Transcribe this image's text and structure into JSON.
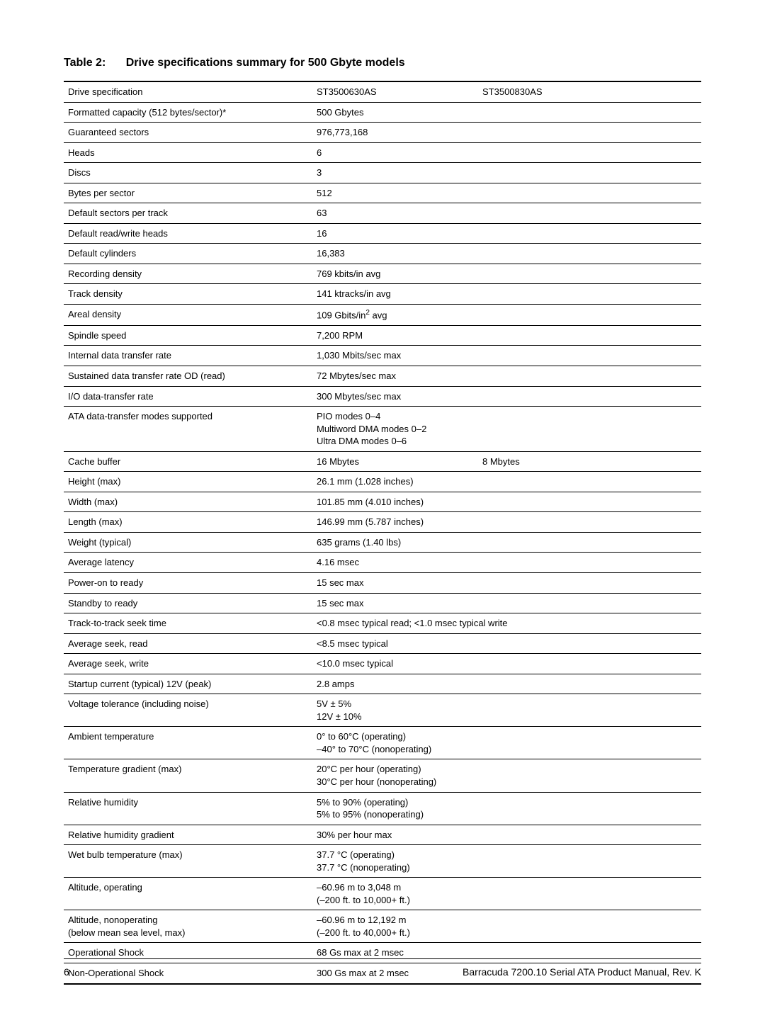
{
  "title_prefix": "Table 2:",
  "title_main": "Drive specifications summary for 500 Gbyte models",
  "footer_page": "6",
  "footer_text": "Barracuda 7200.10 Serial ATA Product Manual, Rev. K",
  "header": {
    "c1": "Drive specification",
    "c2": "ST3500630AS",
    "c3": "ST3500830AS"
  },
  "rows": [
    {
      "label": "Formatted capacity (512 bytes/sector)*",
      "val": "500 Gbytes",
      "span": true
    },
    {
      "label": "Guaranteed sectors",
      "val": "976,773,168",
      "span": true
    },
    {
      "label": "Heads",
      "val": "6",
      "span": true
    },
    {
      "label": "Discs",
      "val": "3",
      "span": true
    },
    {
      "label": "Bytes per sector",
      "val": "512",
      "span": true
    },
    {
      "label": "Default sectors per track",
      "val": "63",
      "span": true
    },
    {
      "label": "Default read/write heads",
      "val": "16",
      "span": true
    },
    {
      "label": "Default cylinders",
      "val": "16,383",
      "span": true
    },
    {
      "label": "Recording density",
      "val": "769 kbits/in avg",
      "span": true
    },
    {
      "label": "Track density",
      "val": "141 ktracks/in avg",
      "span": true
    },
    {
      "label": "Areal density",
      "val_html": "109 Gbits/in<span class='sup'>2</span> avg",
      "span": true
    },
    {
      "label": "Spindle speed",
      "val": "7,200 RPM",
      "span": true
    },
    {
      "label": "Internal data transfer rate",
      "val": "1,030 Mbits/sec max",
      "span": true
    },
    {
      "label": "Sustained data transfer rate OD (read)",
      "val": "72 Mbytes/sec max",
      "span": true
    },
    {
      "label": "I/O data-transfer rate",
      "val": "300 Mbytes/sec max",
      "span": true
    },
    {
      "label": "ATA data-transfer modes supported",
      "val": "PIO modes 0–4\nMultiword DMA modes 0–2\nUltra DMA modes 0–6",
      "span": true
    },
    {
      "label": "Cache buffer",
      "val2": "16 Mbytes",
      "val3": "8 Mbytes",
      "span": false
    },
    {
      "label": "Height (max)",
      "val": "26.1 mm (1.028 inches)",
      "span": true
    },
    {
      "label": "Width (max)",
      "val": "101.85 mm (4.010 inches)",
      "span": true
    },
    {
      "label": "Length (max)",
      "val": "146.99 mm (5.787 inches)",
      "span": true
    },
    {
      "label": "Weight (typical)",
      "val": "635 grams (1.40 lbs)",
      "span": true
    },
    {
      "label": "Average latency",
      "val": "4.16 msec",
      "span": true
    },
    {
      "label": "Power-on to ready",
      "val": "15 sec max",
      "span": true
    },
    {
      "label": "Standby to ready",
      "val": "15 sec max",
      "span": true
    },
    {
      "label": "Track-to-track seek time",
      "val": "<0.8 msec typical read;  <1.0 msec typical write",
      "span": true
    },
    {
      "label": "Average seek, read",
      "val": "<8.5 msec typical",
      "span": true
    },
    {
      "label": "Average seek, write",
      "val": "<10.0 msec typical",
      "span": true
    },
    {
      "label": "Startup current (typical) 12V (peak)",
      "val": "2.8 amps",
      "span": true
    },
    {
      "label": "Voltage tolerance (including noise)",
      "val": "5V ± 5%\n12V ± 10%",
      "span": true
    },
    {
      "label": "Ambient temperature",
      "val": "0° to 60°C (operating)\n–40° to 70°C (nonoperating)",
      "span": true
    },
    {
      "label": "Temperature gradient (max)",
      "val": "20°C per hour (operating)\n30°C per hour (nonoperating)",
      "span": true
    },
    {
      "label": "Relative humidity",
      "val": "5% to 90% (operating)\n5% to 95% (nonoperating)",
      "span": true
    },
    {
      "label": "Relative humidity gradient",
      "val": "30% per hour max",
      "span": true
    },
    {
      "label": "Wet bulb temperature (max)",
      "val": "37.7 °C (operating)\n37.7 °C (nonoperating)",
      "span": true
    },
    {
      "label": "Altitude, operating",
      "val": "–60.96 m to 3,048 m\n(–200 ft. to 10,000+ ft.)",
      "span": true
    },
    {
      "label": "Altitude, nonoperating\n(below mean sea level, max)",
      "val": "–60.96 m to 12,192 m\n(–200 ft. to 40,000+ ft.)",
      "span": true
    },
    {
      "label": "Operational Shock",
      "val": "68 Gs max at 2 msec",
      "span": true
    },
    {
      "label": "Non-Operational Shock",
      "val": "300 Gs max at 2 msec",
      "span": true,
      "last": true
    }
  ]
}
